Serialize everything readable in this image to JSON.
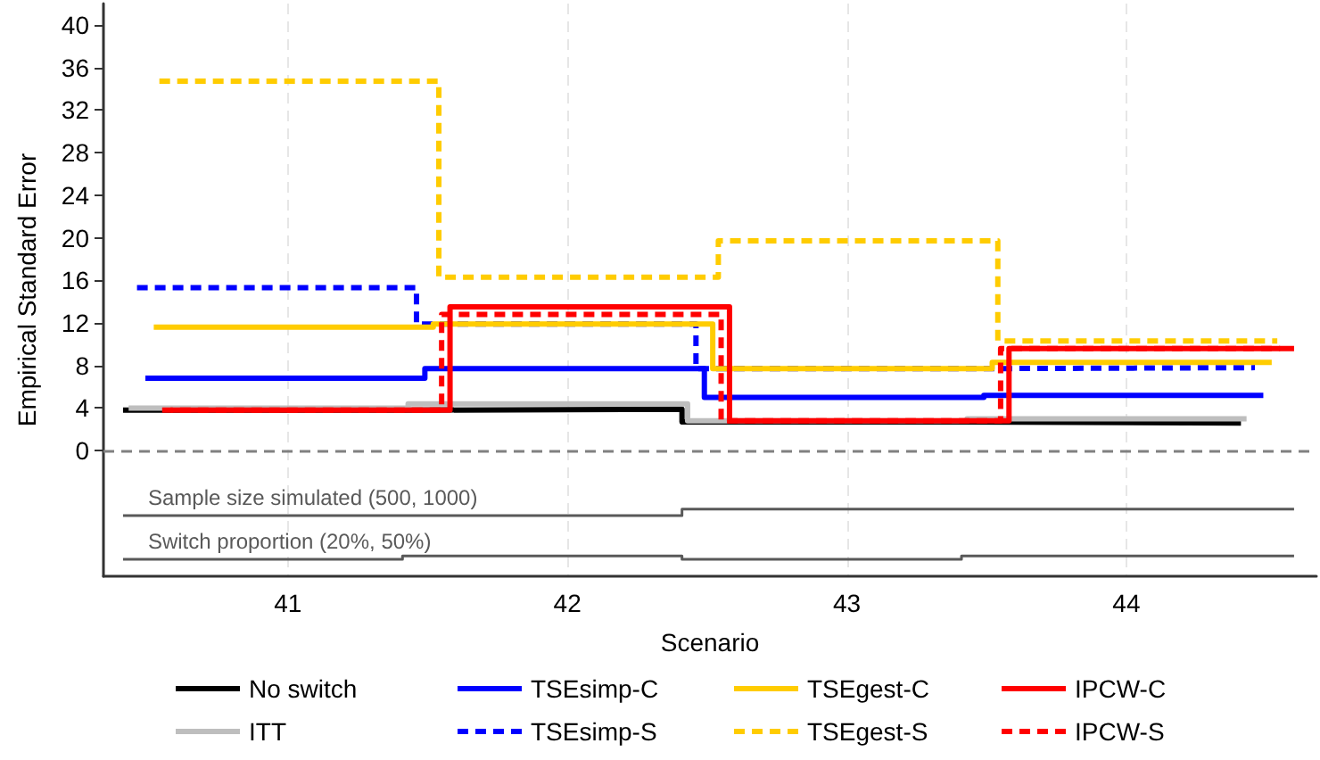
{
  "chart_data": {
    "type": "step",
    "xlabel": "Scenario",
    "ylabel": "Empirical Standard Error",
    "xlim": [
      40.34,
      44.68
    ],
    "xticks": [
      41,
      42,
      43,
      44
    ],
    "ylim": [
      -11.8,
      42
    ],
    "yticks": [
      0,
      4,
      8,
      12,
      16,
      20,
      24,
      28,
      32,
      36,
      40
    ],
    "grid": "x",
    "legend": "bottom",
    "marker": "none",
    "ref_lines": [
      {
        "axis": "y",
        "value": 0,
        "color": "#808080",
        "line_style": "dashed"
      }
    ],
    "series": [
      {
        "name": "No switch",
        "color": "#000000",
        "line_style": "solid",
        "x": [
          40.41,
          41.41,
          42.41,
          43.41,
          44.41
        ],
        "values": [
          3.8,
          3.9,
          2.7,
          2.6,
          2.6
        ]
      },
      {
        "name": "ITT",
        "color": "#bebebe",
        "line_style": "solid",
        "x": [
          40.43,
          41.43,
          42.43,
          43.43,
          44.43
        ],
        "values": [
          4.0,
          4.4,
          2.8,
          3.0,
          3.0
        ]
      },
      {
        "name": "TSEsimp-C",
        "color": "#0000ff",
        "line_style": "solid",
        "x": [
          40.49,
          41.49,
          42.49,
          43.49,
          44.49
        ],
        "values": [
          6.8,
          7.7,
          5.0,
          5.2,
          5.2
        ]
      },
      {
        "name": "TSEsimp-S",
        "color": "#0000ff",
        "line_style": "dashed",
        "x": [
          40.46,
          41.46,
          42.46,
          43.46,
          44.46
        ],
        "values": [
          15.3,
          11.9,
          7.7,
          7.8,
          7.8
        ]
      },
      {
        "name": "TSEgest-C",
        "color": "#ffcc00",
        "line_style": "solid",
        "x": [
          40.52,
          41.52,
          42.52,
          43.52,
          44.52
        ],
        "values": [
          11.6,
          11.9,
          7.7,
          8.3,
          8.3
        ]
      },
      {
        "name": "TSEgest-S",
        "color": "#ffcc00",
        "line_style": "dashed",
        "x": [
          40.54,
          41.54,
          42.54,
          43.54,
          44.54
        ],
        "values": [
          34.7,
          16.3,
          19.7,
          10.3,
          10.3
        ]
      },
      {
        "name": "IPCW-C",
        "color": "#ff0000",
        "line_style": "solid",
        "x": [
          40.58,
          41.58,
          42.58,
          43.58,
          44.6
        ],
        "values": [
          3.8,
          13.5,
          2.8,
          9.6,
          9.6
        ]
      },
      {
        "name": "IPCW-S",
        "color": "#ff0000",
        "line_style": "dashed",
        "x": [
          40.55,
          41.55,
          42.55,
          43.55,
          44.55
        ],
        "values": [
          3.8,
          12.8,
          2.8,
          9.6,
          9.6
        ]
      },
      {
        "name": "Sample size simulated (500, 1000)",
        "type": "line",
        "color": "#595959",
        "line_style": "solid",
        "x": [
          40.41,
          42.41,
          42.41,
          44.6
        ],
        "values": [
          -6.1,
          -6.1,
          -5.5,
          -5.5
        ]
      },
      {
        "name": "Switch proportion (20%, 50%)",
        "type": "line",
        "color": "#595959",
        "line_style": "solid",
        "x": [
          40.41,
          41.41,
          41.41,
          42.41,
          42.41,
          43.41,
          43.41,
          44.6
        ],
        "values": [
          -10.2,
          -10.2,
          -9.9,
          -9.9,
          -10.2,
          -10.2,
          -9.9,
          -9.9
        ]
      }
    ]
  }
}
